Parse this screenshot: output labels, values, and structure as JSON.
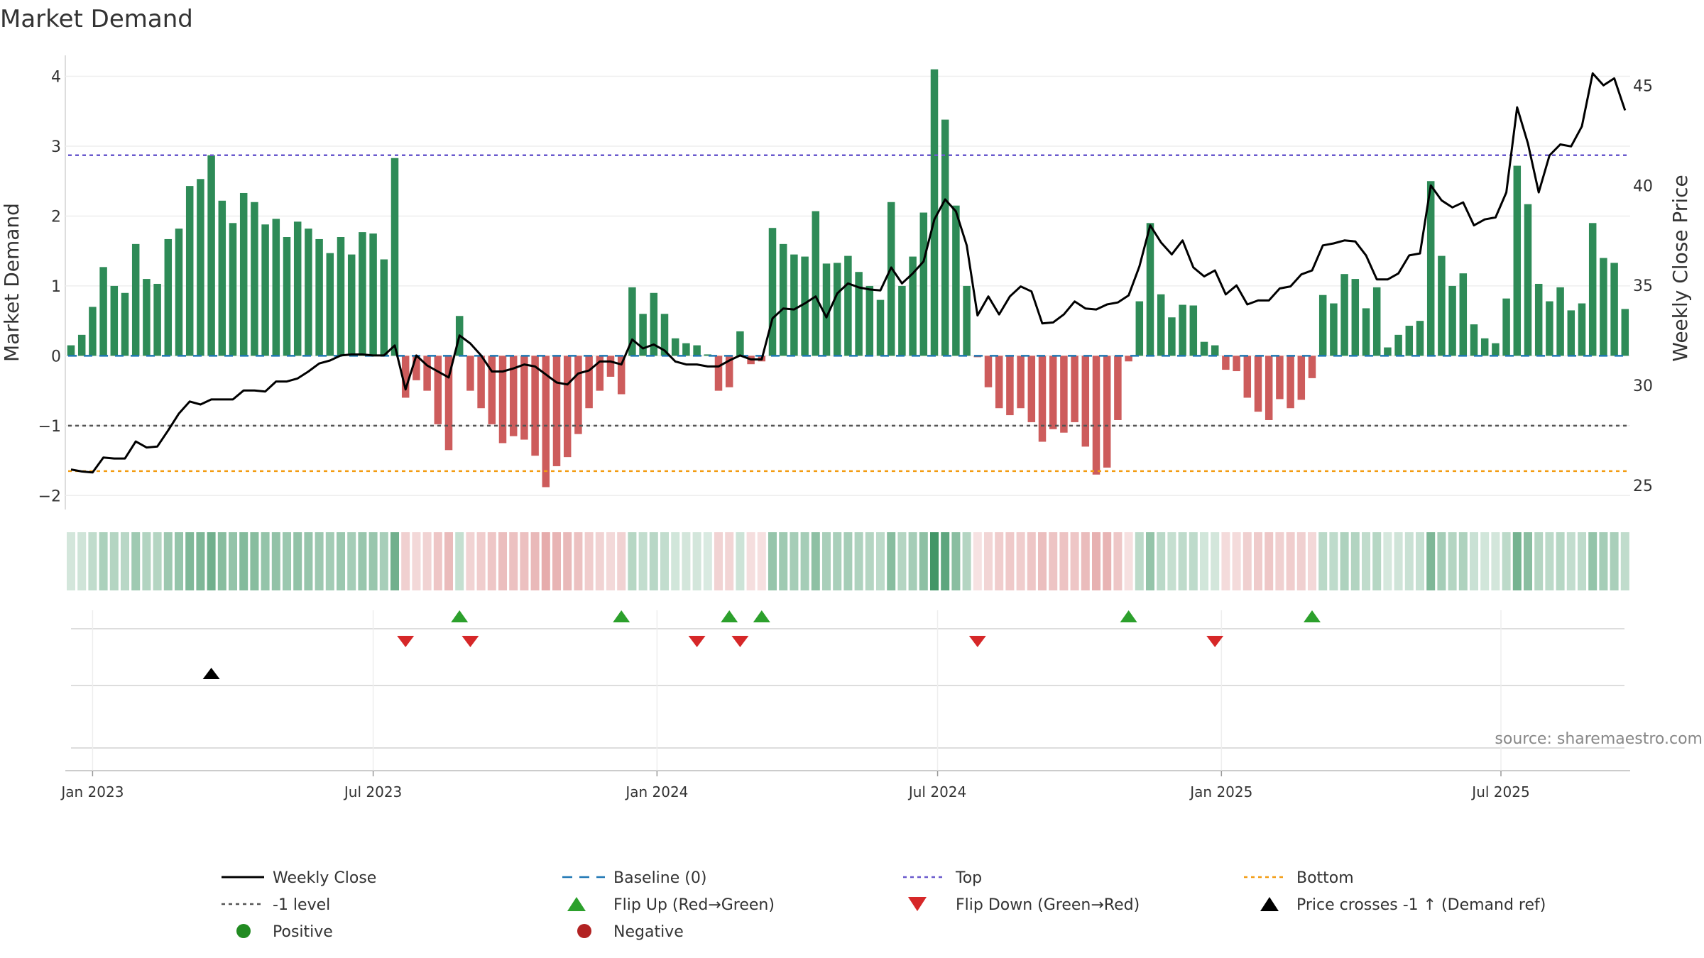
{
  "chart_data": {
    "type": "bar",
    "title": "Market Demand",
    "ylabel": "Market Demand",
    "y2label": "Weekly Close Price",
    "ylim": [
      -2.2,
      4.3
    ],
    "y2lim": [
      23.8,
      46.5
    ],
    "yticks": [
      -2,
      -1,
      0,
      1,
      2,
      3,
      4
    ],
    "y2ticks": [
      25,
      30,
      35,
      40,
      45
    ],
    "reference_lines": {
      "top": 2.87,
      "minus_one": -1,
      "bottom": -1.65,
      "baseline": 0
    },
    "x_tick_labels": [
      {
        "label": "Jan 2023",
        "week": 2
      },
      {
        "label": "Jul 2023",
        "week": 28
      },
      {
        "label": "Jan 2024",
        "week": 54.3
      },
      {
        "label": "Jul 2024",
        "week": 80.3
      },
      {
        "label": "Jan 2025",
        "week": 106.6
      },
      {
        "label": "Jul 2025",
        "week": 132.5
      }
    ],
    "week_count": 145,
    "demand": [
      0.15,
      0.3,
      0.7,
      1.27,
      1.0,
      0.9,
      1.6,
      1.1,
      1.03,
      1.67,
      1.82,
      2.43,
      2.53,
      2.87,
      2.22,
      1.9,
      2.33,
      2.2,
      1.88,
      1.96,
      1.7,
      1.92,
      1.82,
      1.67,
      1.47,
      1.7,
      1.45,
      1.77,
      1.75,
      1.38,
      2.83,
      -0.6,
      -0.35,
      -0.5,
      -0.98,
      -1.35,
      0.57,
      -0.5,
      -0.75,
      -0.98,
      -1.25,
      -1.15,
      -1.2,
      -1.43,
      -1.88,
      -1.58,
      -1.45,
      -1.12,
      -0.75,
      -0.5,
      -0.3,
      -0.55,
      0.98,
      0.6,
      0.9,
      0.6,
      0.25,
      0.18,
      0.15,
      0.02,
      -0.5,
      -0.45,
      0.35,
      -0.12,
      -0.08,
      1.83,
      1.6,
      1.45,
      1.42,
      2.07,
      1.32,
      1.33,
      1.43,
      1.2,
      1.0,
      0.8,
      2.2,
      1.0,
      1.42,
      2.05,
      4.1,
      3.38,
      2.15,
      1.0,
      -0.02,
      -0.45,
      -0.75,
      -0.85,
      -0.75,
      -0.95,
      -1.23,
      -1.05,
      -1.1,
      -0.95,
      -1.3,
      -1.7,
      -1.6,
      -0.92,
      -0.08,
      0.78,
      1.9,
      0.88,
      0.55,
      0.73,
      0.72,
      0.2,
      0.15,
      -0.2,
      -0.22,
      -0.6,
      -0.8,
      -0.92,
      -0.62,
      -0.75,
      -0.63,
      -0.32,
      0.87,
      0.75,
      1.17,
      1.1,
      0.68,
      0.98,
      0.12,
      0.3,
      0.43,
      0.5,
      2.5,
      1.43,
      1.0,
      1.18,
      0.45,
      0.25,
      0.18,
      0.82,
      2.72,
      2.17,
      1.03,
      0.78,
      0.98,
      0.65,
      0.75,
      1.9,
      1.4,
      1.33,
      0.67
    ],
    "weekly_close": [
      25.8,
      25.7,
      25.65,
      26.4,
      26.35,
      26.35,
      27.2,
      26.9,
      26.95,
      27.75,
      28.6,
      29.2,
      29.05,
      29.3,
      29.3,
      29.3,
      29.75,
      29.75,
      29.7,
      30.2,
      30.2,
      30.35,
      30.7,
      31.1,
      31.25,
      31.5,
      31.55,
      31.55,
      31.5,
      31.5,
      32.0,
      29.8,
      31.5,
      31.0,
      30.7,
      30.4,
      32.5,
      32.1,
      31.5,
      30.7,
      30.7,
      30.85,
      31.05,
      30.95,
      30.55,
      30.15,
      30.05,
      30.6,
      30.75,
      31.2,
      31.2,
      31.05,
      32.3,
      31.85,
      32.05,
      31.75,
      31.2,
      31.05,
      31.05,
      30.95,
      30.95,
      31.25,
      31.5,
      31.3,
      31.3,
      33.35,
      33.85,
      33.8,
      34.1,
      34.45,
      33.4,
      34.6,
      35.1,
      34.9,
      34.8,
      34.75,
      35.9,
      35.1,
      35.6,
      36.2,
      38.3,
      39.3,
      38.7,
      37.0,
      33.5,
      34.45,
      33.55,
      34.45,
      34.95,
      34.7,
      33.1,
      33.15,
      33.55,
      34.2,
      33.85,
      33.8,
      34.05,
      34.15,
      34.5,
      35.95,
      38.0,
      37.15,
      36.55,
      37.25,
      35.9,
      35.45,
      35.75,
      34.55,
      35.0,
      34.05,
      34.25,
      34.25,
      34.85,
      34.95,
      35.55,
      35.75,
      37.0,
      37.1,
      37.25,
      37.2,
      36.5,
      35.3,
      35.3,
      35.6,
      36.5,
      36.6,
      40.0,
      39.25,
      38.9,
      39.15,
      38.0,
      38.3,
      38.4,
      39.65,
      43.9,
      42.1,
      39.65,
      41.5,
      42.05,
      41.95,
      42.95,
      45.6,
      45.0,
      45.35,
      43.75
    ],
    "flip_up_weeks": [
      36,
      51,
      61,
      64,
      98,
      115
    ],
    "flip_down_weeks": [
      31,
      37,
      58,
      62,
      84,
      106
    ],
    "price_cross_weeks": [
      13
    ],
    "legend": [
      "Weekly Close",
      "Baseline (0)",
      "Top",
      "Bottom",
      "-1 level",
      "Flip Up (Red→Green)",
      "Flip Down (Green→Red)",
      "Price crosses -1 ↑ (Demand ref)",
      "Positive",
      "Negative"
    ],
    "source": "source: sharemaestro.com",
    "colors": {
      "positive": "#2e8b57",
      "negative": "#cd5c5c",
      "line": "#000000",
      "top": "#6a5acd",
      "minus_one": "#555555",
      "bottom": "#f39c12",
      "baseline": "#1f77b4",
      "flip_up": "#2ca02c",
      "flip_down": "#d62728",
      "legend_positive": "#228b22",
      "legend_negative": "#b22222"
    }
  }
}
